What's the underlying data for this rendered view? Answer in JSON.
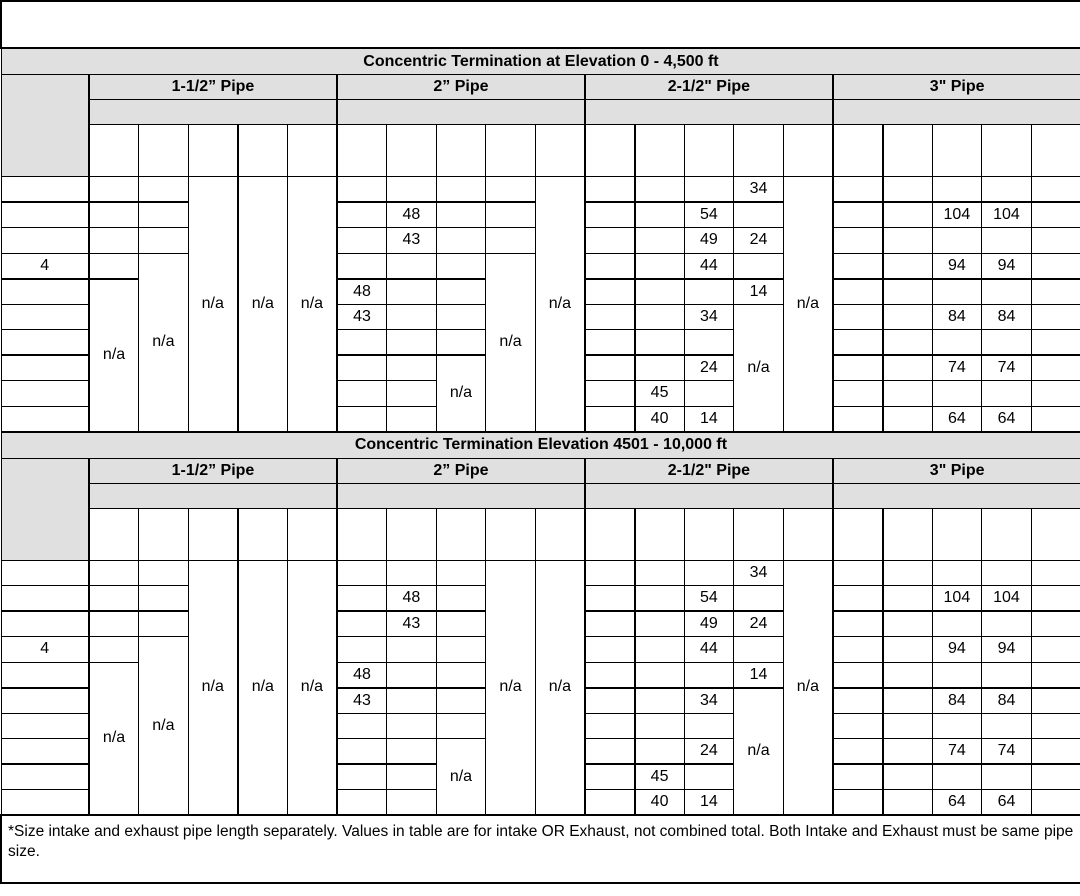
{
  "sections": [
    {
      "title": "Concentric Termination at Elevation 0 - 4,500 ft",
      "pipes": [
        "1-1/2” Pipe",
        "2” Pipe",
        "2-1/2\" Pipe",
        "3\" Pipe"
      ],
      "thick_rows": [
        0,
        3,
        6
      ],
      "rows": [
        [
          "",
          "",
          "",
          {
            "text": "n/a",
            "rowspan": 10
          },
          {
            "text": "n/a",
            "rowspan": 10
          },
          {
            "text": "n/a",
            "rowspan": 10
          },
          "",
          "",
          "",
          "",
          {
            "text": "n/a",
            "rowspan": 10
          },
          "",
          "",
          "",
          "34",
          {
            "text": "n/a",
            "rowspan": 10
          },
          "",
          "",
          "",
          "",
          ""
        ],
        [
          "",
          "",
          "",
          "",
          "48",
          "",
          "",
          "",
          "",
          "54",
          "",
          "",
          "",
          "104",
          "104",
          ""
        ],
        [
          "",
          "",
          "",
          "",
          "43",
          "",
          "",
          "",
          "",
          "49",
          "24",
          "",
          "",
          "",
          "",
          ""
        ],
        [
          "4",
          "",
          {
            "text": "n/a",
            "rowspan": 7
          },
          "",
          "",
          "",
          {
            "text": "n/a",
            "rowspan": 7
          },
          "",
          "",
          "44",
          "",
          "",
          "",
          "94",
          "94",
          ""
        ],
        [
          "",
          {
            "text": "n/a",
            "rowspan": 6
          },
          "48",
          "",
          "",
          "",
          "",
          "",
          "14",
          "",
          "",
          "",
          "",
          ""
        ],
        [
          "",
          "43",
          "",
          "",
          "",
          "",
          "34",
          {
            "text": "n/a",
            "rowspan": 5
          },
          "",
          "",
          "84",
          "84",
          ""
        ],
        [
          "",
          "",
          "",
          "",
          "",
          "",
          "",
          "",
          "",
          "",
          "",
          ""
        ],
        [
          "",
          "",
          "",
          {
            "text": "n/a",
            "rowspan": 3
          },
          "",
          "",
          "24",
          "",
          "",
          "74",
          "74",
          ""
        ],
        [
          "",
          "",
          "",
          "",
          "45",
          "",
          "",
          "",
          "",
          "",
          ""
        ],
        [
          "",
          "",
          "",
          "",
          "40",
          "14",
          "",
          "",
          "64",
          "64",
          ""
        ]
      ]
    },
    {
      "title": "Concentric Termination Elevation 4501 - 10,000 ft",
      "pipes": [
        "1-1/2” Pipe",
        "2” Pipe",
        "2-1/2\" Pipe",
        "3\" Pipe"
      ],
      "thick_rows": [
        1,
        4,
        7
      ],
      "rows": [
        [
          "",
          "",
          "",
          {
            "text": "n/a",
            "rowspan": 10
          },
          {
            "text": "n/a",
            "rowspan": 10
          },
          {
            "text": "n/a",
            "rowspan": 10
          },
          "",
          "",
          "",
          {
            "text": "n/a",
            "rowspan": 10
          },
          {
            "text": "n/a",
            "rowspan": 10
          },
          "",
          "",
          "",
          "34",
          {
            "text": "n/a",
            "rowspan": 10
          },
          "",
          "",
          "",
          "",
          ""
        ],
        [
          "",
          "",
          "",
          "",
          "48",
          "",
          "",
          "",
          "54",
          "",
          "",
          "",
          "104",
          "104",
          ""
        ],
        [
          "",
          "",
          "",
          "",
          "43",
          "",
          "",
          "",
          "49",
          "24",
          "",
          "",
          "",
          "",
          ""
        ],
        [
          "4",
          "",
          {
            "text": "n/a",
            "rowspan": 7
          },
          "",
          "",
          "",
          "",
          "",
          "44",
          "",
          "",
          "",
          "94",
          "94",
          ""
        ],
        [
          "",
          {
            "text": "n/a",
            "rowspan": 6
          },
          "48",
          "",
          "",
          "",
          "",
          "",
          "14",
          "",
          "",
          "",
          "",
          ""
        ],
        [
          "",
          "43",
          "",
          "",
          "",
          "",
          "34",
          {
            "text": "n/a",
            "rowspan": 5
          },
          "",
          "",
          "84",
          "84",
          ""
        ],
        [
          "",
          "",
          "",
          "",
          "",
          "",
          "",
          "",
          "",
          "",
          "",
          ""
        ],
        [
          "",
          "",
          "",
          {
            "text": "n/a",
            "rowspan": 3
          },
          "",
          "",
          "24",
          "",
          "",
          "74",
          "74",
          ""
        ],
        [
          "",
          "",
          "",
          "",
          "45",
          "",
          "",
          "",
          "",
          "",
          ""
        ],
        [
          "",
          "",
          "",
          "",
          "40",
          "14",
          "",
          "",
          "64",
          "64",
          ""
        ]
      ]
    }
  ],
  "footnote": "*Size intake and exhaust pipe length separately. Values in table are for intake OR Exhaust, not combined total. Both Intake and Exhaust must be same pipe size.",
  "colors": {
    "header_fill": "#e0e0e0",
    "border": "#000000"
  }
}
